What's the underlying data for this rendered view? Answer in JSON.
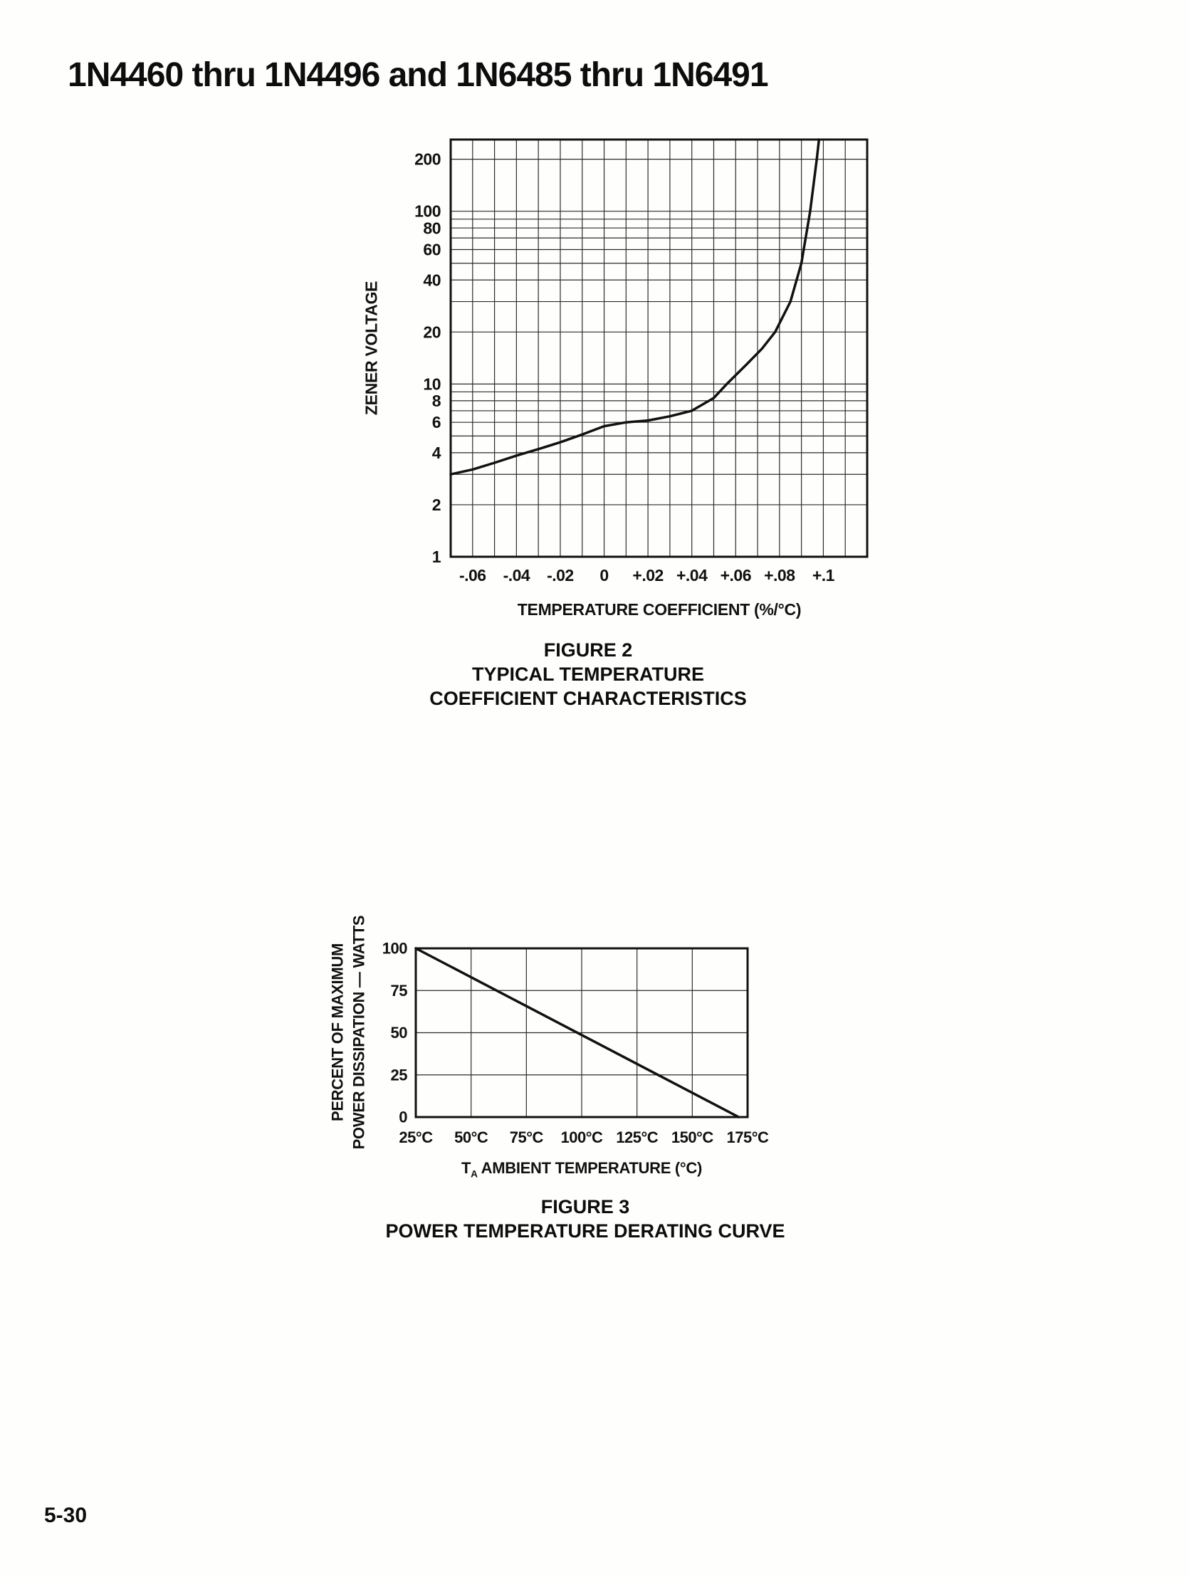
{
  "page": {
    "title": "1N4460 thru 1N4496 and 1N6485 thru 1N6491",
    "page_number": "5-30"
  },
  "chart_data": [
    {
      "id": "figure-2",
      "type": "line",
      "caption_lines": [
        "FIGURE 2",
        "TYPICAL TEMPERATURE",
        "COEFFICIENT CHARACTERISTICS"
      ],
      "xlabel": "TEMPERATURE COEFFICIENT (%/°C)",
      "ylabel": "ZENER VOLTAGE",
      "x_scale": "linear",
      "y_scale": "log",
      "xlim": [
        -0.07,
        0.12
      ],
      "ylim": [
        1,
        260
      ],
      "grid": true,
      "legend": "none",
      "x_gridlines": [
        -0.06,
        -0.05,
        -0.04,
        -0.03,
        -0.02,
        -0.01,
        0,
        0.01,
        0.02,
        0.03,
        0.04,
        0.05,
        0.06,
        0.07,
        0.08,
        0.09,
        0.1,
        0.11
      ],
      "y_gridlines": [
        2,
        3,
        4,
        5,
        6,
        7,
        8,
        9,
        10,
        20,
        30,
        40,
        50,
        60,
        70,
        80,
        90,
        100,
        200
      ],
      "x_ticks": [
        {
          "v": -0.06,
          "label": "-.06"
        },
        {
          "v": -0.04,
          "label": "-.04"
        },
        {
          "v": -0.02,
          "label": "-.02"
        },
        {
          "v": 0,
          "label": "0"
        },
        {
          "v": 0.02,
          "label": "+.02"
        },
        {
          "v": 0.04,
          "label": "+.04"
        },
        {
          "v": 0.06,
          "label": "+.06"
        },
        {
          "v": 0.08,
          "label": "+.08"
        },
        {
          "v": 0.1,
          "label": "+.1"
        }
      ],
      "y_ticks": [
        {
          "v": 200,
          "label": "200"
        },
        {
          "v": 100,
          "label": "100"
        },
        {
          "v": 80,
          "label": "80"
        },
        {
          "v": 60,
          "label": "60"
        },
        {
          "v": 40,
          "label": "40"
        },
        {
          "v": 20,
          "label": "20"
        },
        {
          "v": 10,
          "label": "10"
        },
        {
          "v": 8,
          "label": "8"
        },
        {
          "v": 6,
          "label": "6"
        },
        {
          "v": 4,
          "label": "4"
        },
        {
          "v": 2,
          "label": "2"
        },
        {
          "v": 1,
          "label": "1"
        }
      ],
      "series": [
        {
          "name": "typical zener temperature coefficient",
          "points": [
            [
              -0.07,
              3.0
            ],
            [
              -0.06,
              3.2
            ],
            [
              -0.05,
              3.5
            ],
            [
              -0.04,
              3.85
            ],
            [
              -0.03,
              4.2
            ],
            [
              -0.02,
              4.6
            ],
            [
              -0.01,
              5.1
            ],
            [
              0,
              5.7
            ],
            [
              0.01,
              6.0
            ],
            [
              0.02,
              6.15
            ],
            [
              0.03,
              6.5
            ],
            [
              0.04,
              7.0
            ],
            [
              0.05,
              8.3
            ],
            [
              0.056,
              10
            ],
            [
              0.065,
              13
            ],
            [
              0.072,
              16
            ],
            [
              0.078,
              20
            ],
            [
              0.085,
              30
            ],
            [
              0.09,
              50
            ],
            [
              0.094,
              100
            ],
            [
              0.097,
              200
            ],
            [
              0.098,
              260
            ]
          ]
        }
      ]
    },
    {
      "id": "figure-3",
      "type": "line",
      "caption_lines": [
        "FIGURE 3",
        "POWER TEMPERATURE DERATING CURVE"
      ],
      "xlabel": "TA AMBIENT TEMPERATURE (°C)",
      "xlabel_parts": {
        "main": "T",
        "sub": "A",
        "rest": " AMBIENT TEMPERATURE (°C)"
      },
      "ylabel_lines": [
        "PERCENT OF MAXIMUM",
        "POWER DISSIPATION — WATTS"
      ],
      "x_scale": "linear",
      "y_scale": "linear",
      "xlim": [
        25,
        175
      ],
      "ylim": [
        0,
        100
      ],
      "grid": true,
      "legend": "none",
      "x_gridlines": [
        50,
        75,
        100,
        125,
        150
      ],
      "y_gridlines": [
        25,
        50,
        75
      ],
      "x_ticks": [
        {
          "v": 25,
          "label": "25°C"
        },
        {
          "v": 50,
          "label": "50°C"
        },
        {
          "v": 75,
          "label": "75°C"
        },
        {
          "v": 100,
          "label": "100°C"
        },
        {
          "v": 125,
          "label": "125°C"
        },
        {
          "v": 150,
          "label": "150°C"
        },
        {
          "v": 175,
          "label": "175°C"
        }
      ],
      "y_ticks": [
        {
          "v": 100,
          "label": "100"
        },
        {
          "v": 75,
          "label": "75"
        },
        {
          "v": 50,
          "label": "50"
        },
        {
          "v": 25,
          "label": "25"
        },
        {
          "v": 0,
          "label": "0"
        }
      ],
      "series": [
        {
          "name": "power temperature derating",
          "points": [
            [
              25,
              100
            ],
            [
              171,
              0
            ]
          ]
        }
      ]
    }
  ]
}
